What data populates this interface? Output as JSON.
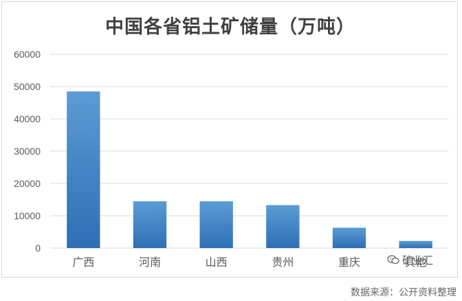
{
  "chart_data": {
    "type": "bar",
    "title": "中国各省铝土矿储量（万吨）",
    "xlabel": "",
    "ylabel": "",
    "categories": [
      "广西",
      "河南",
      "山西",
      "贵州",
      "重庆",
      "其他"
    ],
    "values": [
      48500,
      14500,
      14500,
      13300,
      6300,
      2200
    ],
    "ylim": [
      0,
      60000
    ],
    "yticks": [
      0,
      10000,
      20000,
      30000,
      40000,
      50000,
      60000
    ],
    "grid": true,
    "legend": "none",
    "colors": {
      "bar_top": "#5b9bd5",
      "bar_bottom": "#2e6fb5",
      "grid": "#d9d9d9",
      "axis_text": "#595959",
      "title": "#404040"
    }
  },
  "watermark": {
    "icon": "wechat-icon",
    "text": "矿业汇"
  },
  "source_note": "数据来源：公开资料整理"
}
